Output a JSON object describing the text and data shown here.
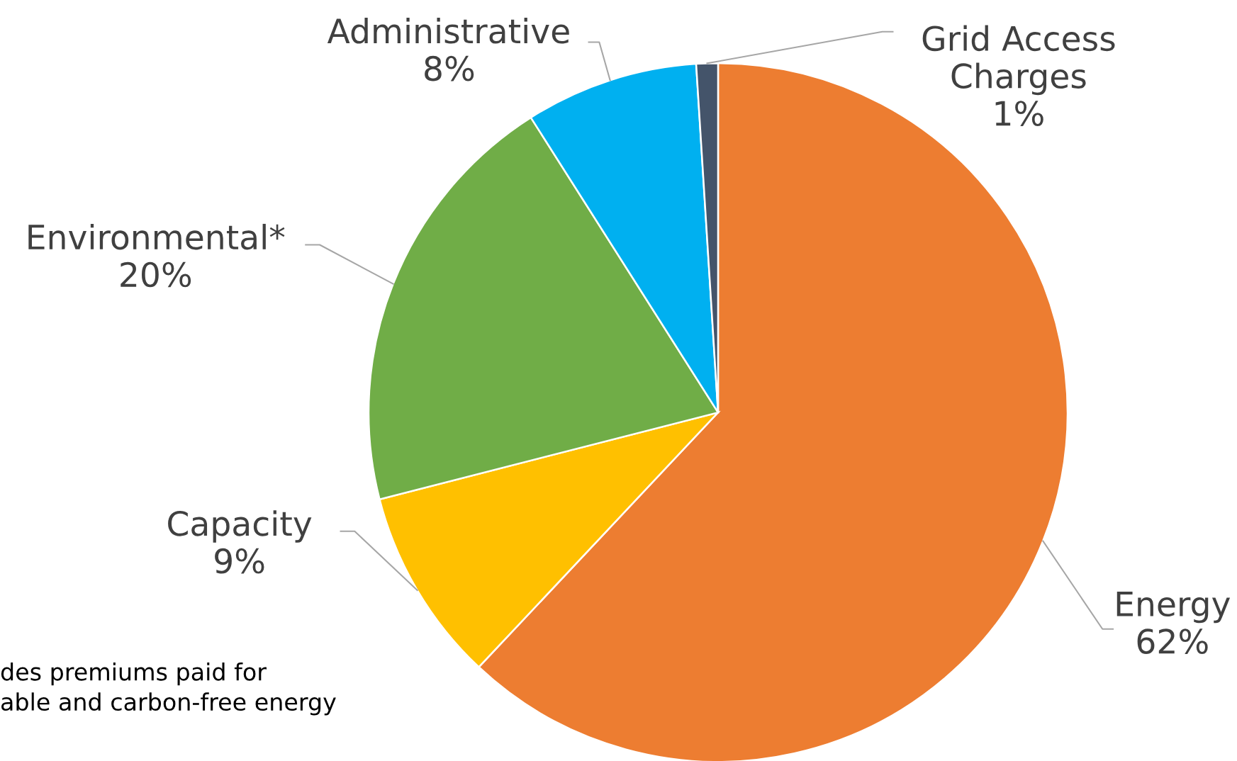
{
  "chart_data": {
    "type": "pie",
    "categories": [
      "Energy",
      "Capacity",
      "Environmental*",
      "Administrative",
      "Grid Access\nCharges"
    ],
    "values": [
      62,
      9,
      20,
      8,
      1
    ],
    "colors": [
      "#ed7d31",
      "#ffc000",
      "#70ad47",
      "#00b0f0",
      "#44546a"
    ],
    "value_labels": [
      "62%",
      "9%",
      "20%",
      "8%",
      "1%"
    ],
    "legend": false,
    "annotations": [
      "des premiums paid for\nable and carbon-free energy"
    ]
  }
}
